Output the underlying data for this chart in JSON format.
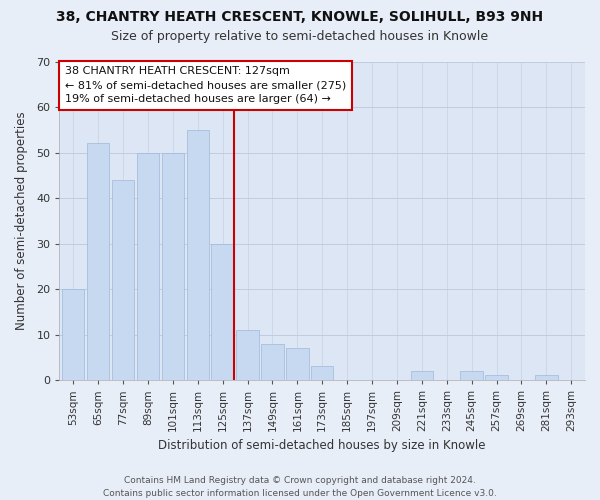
{
  "title": "38, CHANTRY HEATH CRESCENT, KNOWLE, SOLIHULL, B93 9NH",
  "subtitle": "Size of property relative to semi-detached houses in Knowle",
  "xlabel": "Distribution of semi-detached houses by size in Knowle",
  "ylabel": "Number of semi-detached properties",
  "bin_labels": [
    "53sqm",
    "65sqm",
    "77sqm",
    "89sqm",
    "101sqm",
    "113sqm",
    "125sqm",
    "137sqm",
    "149sqm",
    "161sqm",
    "173sqm",
    "185sqm",
    "197sqm",
    "209sqm",
    "221sqm",
    "233sqm",
    "245sqm",
    "257sqm",
    "269sqm",
    "281sqm",
    "293sqm"
  ],
  "bar_values": [
    20,
    52,
    44,
    50,
    50,
    55,
    30,
    11,
    8,
    7,
    3,
    0,
    0,
    0,
    2,
    0,
    2,
    1,
    0,
    1,
    0
  ],
  "bar_color": "#c6d9f0",
  "bar_edge_color": "#a0b8d8",
  "vline_index": 6,
  "vline_color": "#cc0000",
  "ylim": [
    0,
    70
  ],
  "yticks": [
    0,
    10,
    20,
    30,
    40,
    50,
    60,
    70
  ],
  "annotation_title": "38 CHANTRY HEATH CRESCENT: 127sqm",
  "annotation_line1": "← 81% of semi-detached houses are smaller (275)",
  "annotation_line2": "19% of semi-detached houses are larger (64) →",
  "footer_line1": "Contains HM Land Registry data © Crown copyright and database right 2024.",
  "footer_line2": "Contains public sector information licensed under the Open Government Licence v3.0.",
  "background_color": "#e8eef8",
  "plot_bg_color": "#dce6f5",
  "grid_color": "#c0cce0",
  "title_fontsize": 10,
  "subtitle_fontsize": 9,
  "axis_label_fontsize": 8,
  "tick_fontsize": 7.5,
  "annotation_fontsize": 8,
  "footer_fontsize": 6.5
}
